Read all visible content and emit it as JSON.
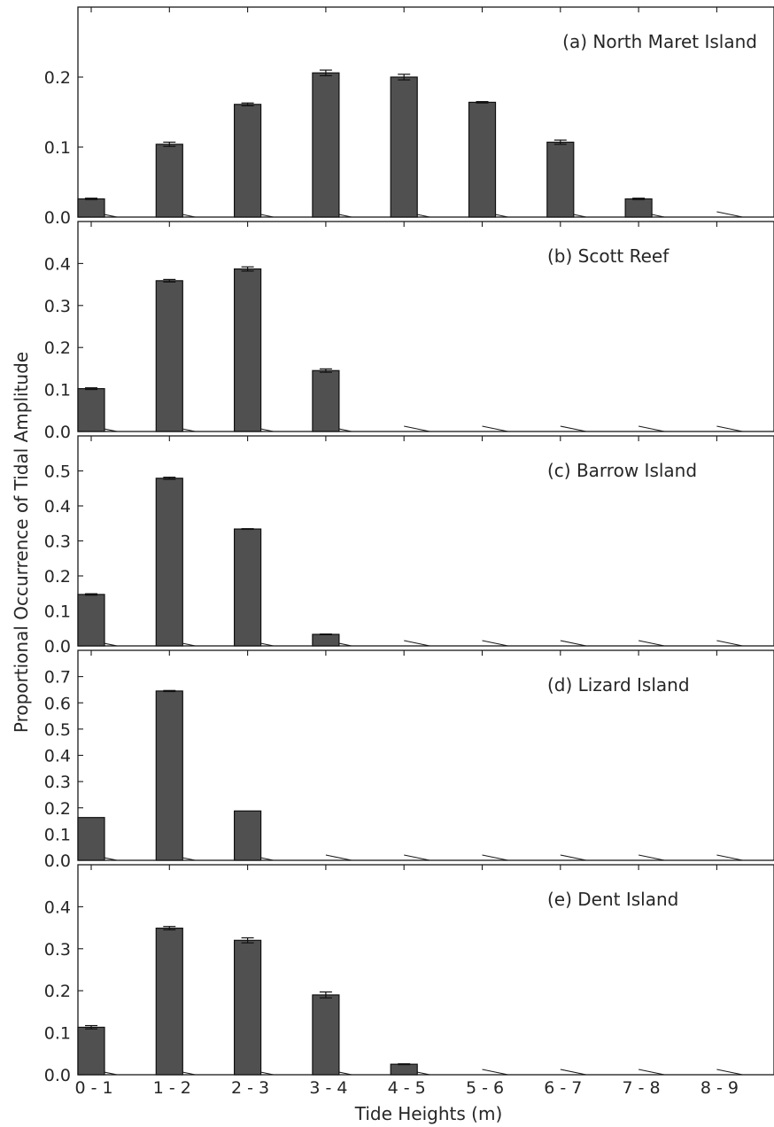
{
  "figure": {
    "xlabel": "Tide Heights (m)",
    "ylabel": "Proportional Occurrence of Tidal Amplitude",
    "bar_color": "#505050",
    "edge_color": "#111111"
  },
  "chart_data": [
    {
      "type": "bar",
      "title": "(a) North Maret Island",
      "categories": [
        "0 - 1",
        "1 - 2",
        "2 - 3",
        "3 - 4",
        "4 - 5",
        "5 - 6",
        "6 - 7",
        "7 - 8",
        "8 - 9"
      ],
      "values": [
        0.026,
        0.104,
        0.161,
        0.206,
        0.2,
        0.164,
        0.107,
        0.026,
        0.0
      ],
      "errors": [
        0.001,
        0.003,
        0.002,
        0.004,
        0.004,
        0.001,
        0.003,
        0.001,
        0.0
      ],
      "ylim": [
        0,
        0.3
      ],
      "yticks": [
        0.0,
        0.1,
        0.2
      ],
      "ytick_labels": [
        "0.0",
        "0.1",
        "0.2"
      ]
    },
    {
      "type": "bar",
      "title": "(b) Scott Reef",
      "categories": [
        "0 - 1",
        "1 - 2",
        "2 - 3",
        "3 - 4",
        "4 - 5",
        "5 - 6",
        "6 - 7",
        "7 - 8",
        "8 - 9"
      ],
      "values": [
        0.102,
        0.359,
        0.387,
        0.145,
        0.0,
        0.0,
        0.0,
        0.0,
        0.0
      ],
      "errors": [
        0.002,
        0.003,
        0.005,
        0.004,
        0.0,
        0.0,
        0.0,
        0.0,
        0.0
      ],
      "ylim": [
        0,
        0.5
      ],
      "yticks": [
        0.0,
        0.1,
        0.2,
        0.3,
        0.4
      ],
      "ytick_labels": [
        "0.0",
        "0.1",
        "0.2",
        "0.3",
        "0.4"
      ]
    },
    {
      "type": "bar",
      "title": "(c) Barrow Island",
      "categories": [
        "0 - 1",
        "1 - 2",
        "2 - 3",
        "3 - 4",
        "4 - 5",
        "5 - 6",
        "6 - 7",
        "7 - 8",
        "8 - 9"
      ],
      "values": [
        0.147,
        0.479,
        0.334,
        0.033,
        0.0,
        0.0,
        0.0,
        0.0,
        0.0
      ],
      "errors": [
        0.002,
        0.003,
        0.001,
        0.001,
        0.0,
        0.0,
        0.0,
        0.0,
        0.0
      ],
      "ylim": [
        0,
        0.6
      ],
      "yticks": [
        0.0,
        0.1,
        0.2,
        0.3,
        0.4,
        0.5
      ],
      "ytick_labels": [
        "0.0",
        "0.1",
        "0.2",
        "0.3",
        "0.4",
        "0.5"
      ]
    },
    {
      "type": "bar",
      "title": "(d) Lizard Island",
      "categories": [
        "0 - 1",
        "1 - 2",
        "2 - 3",
        "3 - 4",
        "4 - 5",
        "5 - 6",
        "6 - 7",
        "7 - 8",
        "8 - 9"
      ],
      "values": [
        0.163,
        0.645,
        0.188,
        0.0,
        0.0,
        0.0,
        0.0,
        0.0,
        0.0
      ],
      "errors": [
        0.0,
        0.002,
        0.0,
        0.0,
        0.0,
        0.0,
        0.0,
        0.0,
        0.0
      ],
      "ylim": [
        0,
        0.8
      ],
      "yticks": [
        0.0,
        0.1,
        0.2,
        0.3,
        0.4,
        0.5,
        0.6,
        0.7
      ],
      "ytick_labels": [
        "0.0",
        "0.1",
        "0.2",
        "0.3",
        "0.4",
        "0.5",
        "0.6",
        "0.7"
      ]
    },
    {
      "type": "bar",
      "title": "(e) Dent Island",
      "categories": [
        "0 - 1",
        "1 - 2",
        "2 - 3",
        "3 - 4",
        "4 - 5",
        "5 - 6",
        "6 - 7",
        "7 - 8",
        "8 - 9"
      ],
      "values": [
        0.113,
        0.349,
        0.32,
        0.19,
        0.025,
        0.0,
        0.0,
        0.0,
        0.0
      ],
      "errors": [
        0.004,
        0.004,
        0.006,
        0.007,
        0.001,
        0.0,
        0.0,
        0.0,
        0.0
      ],
      "ylim": [
        0,
        0.5
      ],
      "yticks": [
        0.0,
        0.1,
        0.2,
        0.3,
        0.4
      ],
      "ytick_labels": [
        "0.0",
        "0.1",
        "0.2",
        "0.3",
        "0.4"
      ],
      "show_xtick_labels": true
    }
  ]
}
